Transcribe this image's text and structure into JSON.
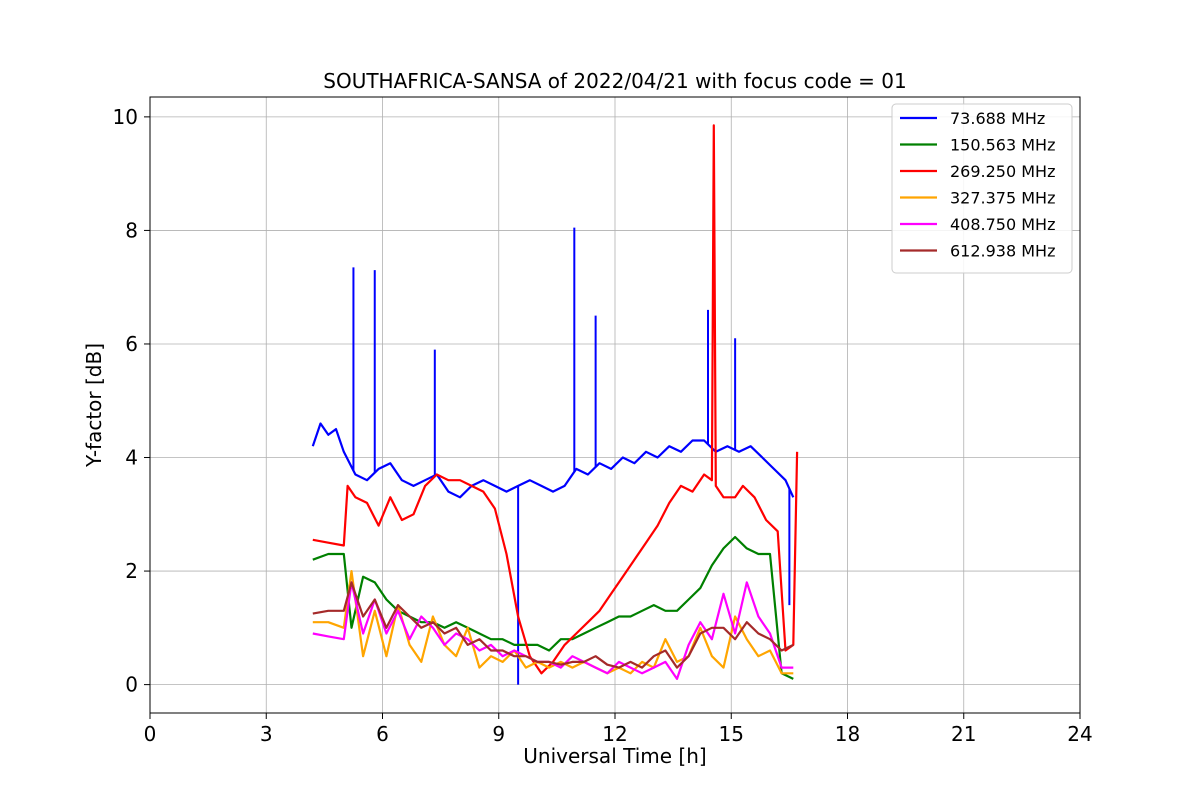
{
  "chart_data": {
    "type": "line",
    "title": "SOUTHAFRICA-SANSA of 2022/04/21 with focus code = 01",
    "xlabel": "Universal Time [h]",
    "ylabel": "Y-factor [dB]",
    "xlim": [
      0,
      24
    ],
    "ylim": [
      -0.5,
      10.35
    ],
    "xticks": [
      0,
      3,
      6,
      9,
      12,
      15,
      18,
      21,
      24
    ],
    "yticks": [
      0,
      2,
      4,
      6,
      8,
      10
    ],
    "xtick_labels": [
      "0",
      "3",
      "6",
      "9",
      "12",
      "15",
      "18",
      "21",
      "24"
    ],
    "ytick_labels": [
      "0",
      "2",
      "4",
      "6",
      "8",
      "10"
    ],
    "grid": true,
    "legend_position": "top-right",
    "series": [
      {
        "name": "73.688 MHz",
        "color": "#0000ff",
        "x": [
          4.2,
          4.4,
          4.6,
          4.8,
          5.0,
          5.3,
          5.6,
          5.9,
          6.2,
          6.5,
          6.8,
          7.1,
          7.4,
          7.7,
          8.0,
          8.3,
          8.6,
          8.9,
          9.2,
          9.5,
          9.8,
          10.1,
          10.4,
          10.7,
          11.0,
          11.3,
          11.6,
          11.9,
          12.2,
          12.5,
          12.8,
          13.1,
          13.4,
          13.7,
          14.0,
          14.3,
          14.6,
          14.9,
          15.2,
          15.5,
          15.8,
          16.1,
          16.4,
          16.6
        ],
        "y": [
          4.2,
          4.6,
          4.4,
          4.5,
          4.1,
          3.7,
          3.6,
          3.8,
          3.9,
          3.6,
          3.5,
          3.6,
          3.7,
          3.4,
          3.3,
          3.5,
          3.6,
          3.5,
          3.4,
          3.5,
          3.6,
          3.5,
          3.4,
          3.5,
          3.8,
          3.7,
          3.9,
          3.8,
          4.0,
          3.9,
          4.1,
          4.0,
          4.2,
          4.1,
          4.3,
          4.3,
          4.1,
          4.2,
          4.1,
          4.2,
          4.0,
          3.8,
          3.6,
          3.3
        ],
        "spikes": [
          [
            5.25,
            7.35
          ],
          [
            5.8,
            7.3
          ],
          [
            7.35,
            5.9
          ],
          [
            10.95,
            8.05
          ],
          [
            11.5,
            6.5
          ],
          [
            14.4,
            6.6
          ],
          [
            15.1,
            6.1
          ],
          [
            9.5,
            0.0
          ],
          [
            16.5,
            1.4
          ]
        ]
      },
      {
        "name": "150.563 MHz",
        "color": "#008000",
        "x": [
          4.2,
          4.6,
          5.0,
          5.2,
          5.5,
          5.8,
          6.1,
          6.4,
          6.7,
          7.0,
          7.3,
          7.6,
          7.9,
          8.2,
          8.5,
          8.8,
          9.1,
          9.4,
          9.7,
          10.0,
          10.3,
          10.6,
          10.9,
          11.2,
          11.5,
          11.8,
          12.1,
          12.4,
          12.7,
          13.0,
          13.3,
          13.6,
          13.9,
          14.2,
          14.5,
          14.8,
          15.1,
          15.4,
          15.7,
          16.0,
          16.3,
          16.6
        ],
        "y": [
          2.2,
          2.3,
          2.3,
          1.0,
          1.9,
          1.8,
          1.5,
          1.3,
          1.2,
          1.1,
          1.1,
          1.0,
          1.1,
          1.0,
          0.9,
          0.8,
          0.8,
          0.7,
          0.7,
          0.7,
          0.6,
          0.8,
          0.8,
          0.9,
          1.0,
          1.1,
          1.2,
          1.2,
          1.3,
          1.4,
          1.3,
          1.3,
          1.5,
          1.7,
          2.1,
          2.4,
          2.6,
          2.4,
          2.3,
          2.3,
          0.2,
          0.1
        ]
      },
      {
        "name": "269.250 MHz",
        "color": "#ff0000",
        "x": [
          4.2,
          4.6,
          5.0,
          5.1,
          5.3,
          5.6,
          5.9,
          6.2,
          6.5,
          6.8,
          7.1,
          7.4,
          7.7,
          8.0,
          8.3,
          8.6,
          8.9,
          9.2,
          9.5,
          9.8,
          10.1,
          10.4,
          10.7,
          11.0,
          11.3,
          11.6,
          11.9,
          12.2,
          12.5,
          12.8,
          13.1,
          13.4,
          13.7,
          14.0,
          14.3,
          14.5,
          14.55,
          14.6,
          14.8,
          15.1,
          15.3,
          15.6,
          15.9,
          16.2,
          16.4,
          16.6,
          16.7
        ],
        "y": [
          2.55,
          2.5,
          2.45,
          3.5,
          3.3,
          3.2,
          2.8,
          3.3,
          2.9,
          3.0,
          3.5,
          3.7,
          3.6,
          3.6,
          3.5,
          3.4,
          3.1,
          2.3,
          1.2,
          0.5,
          0.2,
          0.4,
          0.7,
          0.9,
          1.1,
          1.3,
          1.6,
          1.9,
          2.2,
          2.5,
          2.8,
          3.2,
          3.5,
          3.4,
          3.7,
          3.6,
          9.85,
          3.5,
          3.3,
          3.3,
          3.5,
          3.3,
          2.9,
          2.7,
          0.6,
          0.7,
          4.1
        ]
      },
      {
        "name": "327.375 MHz",
        "color": "#ffa500",
        "x": [
          4.2,
          4.6,
          5.0,
          5.2,
          5.5,
          5.8,
          6.1,
          6.4,
          6.7,
          7.0,
          7.3,
          7.6,
          7.9,
          8.2,
          8.5,
          8.8,
          9.1,
          9.4,
          9.7,
          10.0,
          10.3,
          10.6,
          10.9,
          11.2,
          11.5,
          11.8,
          12.1,
          12.4,
          12.7,
          13.0,
          13.3,
          13.6,
          13.9,
          14.2,
          14.5,
          14.8,
          15.1,
          15.4,
          15.7,
          16.0,
          16.3,
          16.6
        ],
        "y": [
          1.1,
          1.1,
          1.0,
          2.0,
          0.5,
          1.3,
          0.5,
          1.4,
          0.7,
          0.4,
          1.2,
          0.7,
          0.5,
          1.0,
          0.3,
          0.5,
          0.4,
          0.6,
          0.3,
          0.4,
          0.3,
          0.4,
          0.3,
          0.4,
          0.3,
          0.2,
          0.3,
          0.2,
          0.4,
          0.3,
          0.8,
          0.4,
          0.5,
          1.0,
          0.5,
          0.3,
          1.2,
          0.8,
          0.5,
          0.6,
          0.2,
          0.2
        ]
      },
      {
        "name": "408.750 MHz",
        "color": "#ff00ff",
        "x": [
          4.2,
          4.6,
          5.0,
          5.2,
          5.5,
          5.8,
          6.1,
          6.4,
          6.7,
          7.0,
          7.3,
          7.6,
          7.9,
          8.2,
          8.5,
          8.8,
          9.1,
          9.4,
          9.7,
          10.0,
          10.3,
          10.6,
          10.9,
          11.2,
          11.5,
          11.8,
          12.1,
          12.4,
          12.7,
          13.0,
          13.3,
          13.6,
          13.9,
          14.2,
          14.5,
          14.8,
          15.1,
          15.4,
          15.7,
          16.0,
          16.3,
          16.6
        ],
        "y": [
          0.9,
          0.85,
          0.8,
          1.8,
          0.9,
          1.5,
          0.9,
          1.3,
          0.8,
          1.2,
          1.0,
          0.7,
          0.9,
          0.8,
          0.6,
          0.7,
          0.5,
          0.6,
          0.5,
          0.4,
          0.4,
          0.3,
          0.5,
          0.4,
          0.3,
          0.2,
          0.4,
          0.3,
          0.2,
          0.3,
          0.4,
          0.1,
          0.7,
          1.1,
          0.8,
          1.6,
          0.9,
          1.8,
          1.2,
          0.9,
          0.3,
          0.3
        ]
      },
      {
        "name": "612.938 MHz",
        "color": "#a52a2a",
        "x": [
          4.2,
          4.6,
          5.0,
          5.2,
          5.5,
          5.8,
          6.1,
          6.4,
          6.7,
          7.0,
          7.3,
          7.6,
          7.9,
          8.2,
          8.5,
          8.8,
          9.1,
          9.4,
          9.7,
          10.0,
          10.3,
          10.6,
          10.9,
          11.2,
          11.5,
          11.8,
          12.1,
          12.4,
          12.7,
          13.0,
          13.3,
          13.6,
          13.9,
          14.2,
          14.5,
          14.8,
          15.1,
          15.4,
          15.7,
          16.0,
          16.3,
          16.6
        ],
        "y": [
          1.25,
          1.3,
          1.3,
          1.8,
          1.2,
          1.5,
          1.0,
          1.4,
          1.2,
          1.0,
          1.1,
          0.9,
          1.0,
          0.7,
          0.8,
          0.6,
          0.6,
          0.5,
          0.5,
          0.4,
          0.4,
          0.35,
          0.4,
          0.4,
          0.5,
          0.35,
          0.3,
          0.4,
          0.3,
          0.5,
          0.6,
          0.3,
          0.5,
          0.9,
          1.0,
          1.0,
          0.8,
          1.1,
          0.9,
          0.8,
          0.6,
          0.7
        ]
      }
    ]
  }
}
